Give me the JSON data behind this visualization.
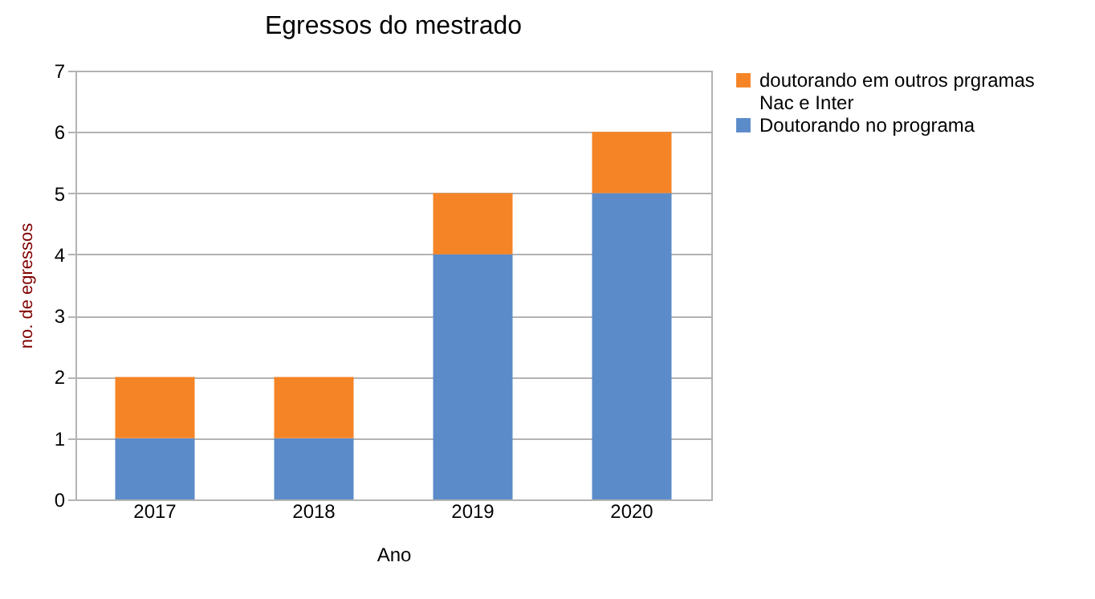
{
  "chart_data": {
    "type": "bar",
    "title": "Egressos do mestrado",
    "xlabel": "Ano",
    "ylabel": "no. de egressos",
    "categories": [
      "2017",
      "2018",
      "2019",
      "2020"
    ],
    "stacked": true,
    "series": [
      {
        "name": "Doutorando no programa",
        "color": "#5b8bc9",
        "values": [
          1,
          1,
          4,
          5
        ]
      },
      {
        "name": " doutorando em outros prgramas Nac e Inter",
        "color": "#f58426",
        "values": [
          1,
          1,
          1,
          1
        ]
      }
    ],
    "ylim": [
      0,
      7
    ],
    "yticks": [
      0,
      1,
      2,
      3,
      4,
      5,
      6,
      7
    ],
    "grid": "y",
    "legend": "right"
  }
}
